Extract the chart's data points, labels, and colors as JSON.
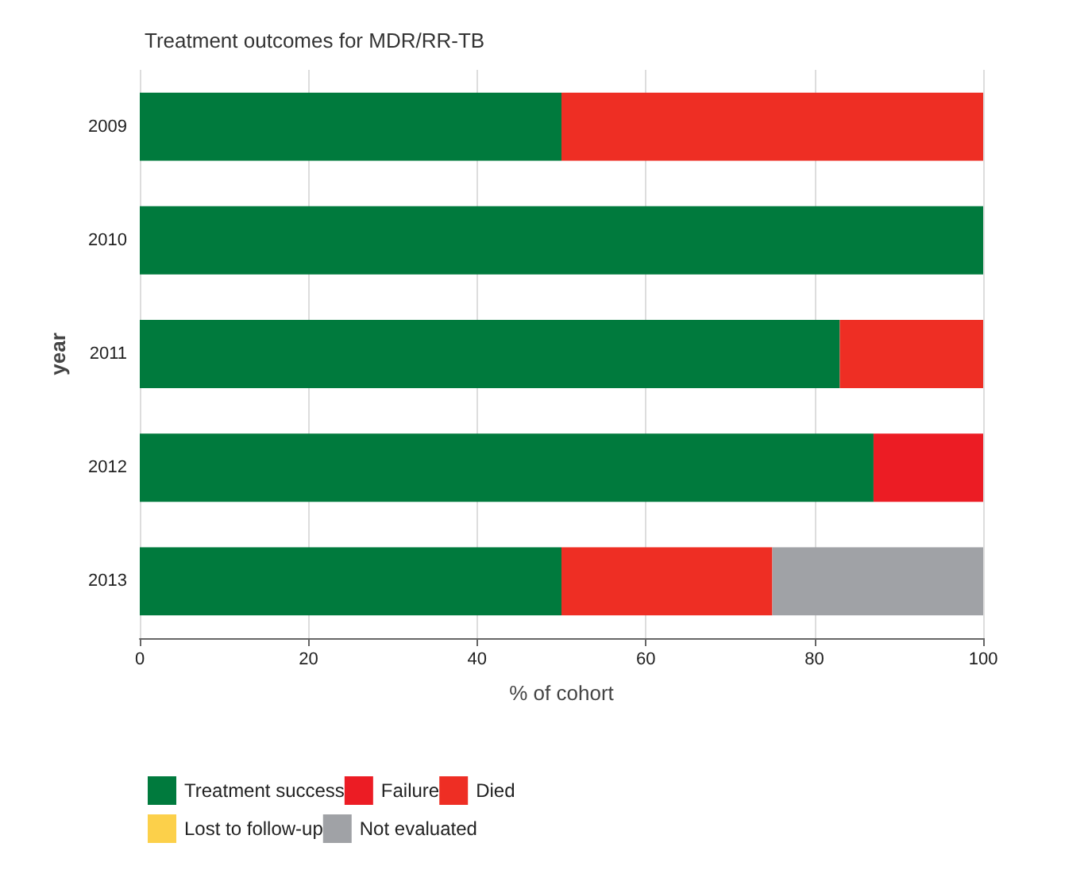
{
  "chart_data": {
    "type": "bar",
    "orientation": "horizontal",
    "stacked": true,
    "title": "Treatment outcomes for MDR/RR-TB",
    "xlabel": "% of cohort",
    "ylabel": "year",
    "categories": [
      "2009",
      "2010",
      "2011",
      "2012",
      "2013"
    ],
    "series": [
      {
        "name": "Treatment success",
        "color": "#007a3d",
        "values": [
          50,
          100,
          83,
          87,
          50
        ]
      },
      {
        "name": "Failure",
        "color": "#ec1c24",
        "values": [
          0,
          0,
          0,
          13,
          0
        ]
      },
      {
        "name": "Died",
        "color": "#ee2e24",
        "values": [
          50,
          0,
          17,
          0,
          25
        ]
      },
      {
        "name": "Lost to follow-up",
        "color": "#fcd04a",
        "values": [
          0,
          0,
          0,
          0,
          0
        ]
      },
      {
        "name": "Not evaluated",
        "color": "#a0a2a6",
        "values": [
          0,
          0,
          0,
          0,
          25
        ]
      }
    ],
    "xlim": [
      0,
      100
    ],
    "xticks": [
      0,
      20,
      40,
      60,
      80,
      100
    ],
    "grid": "x",
    "legend": "bottom"
  }
}
